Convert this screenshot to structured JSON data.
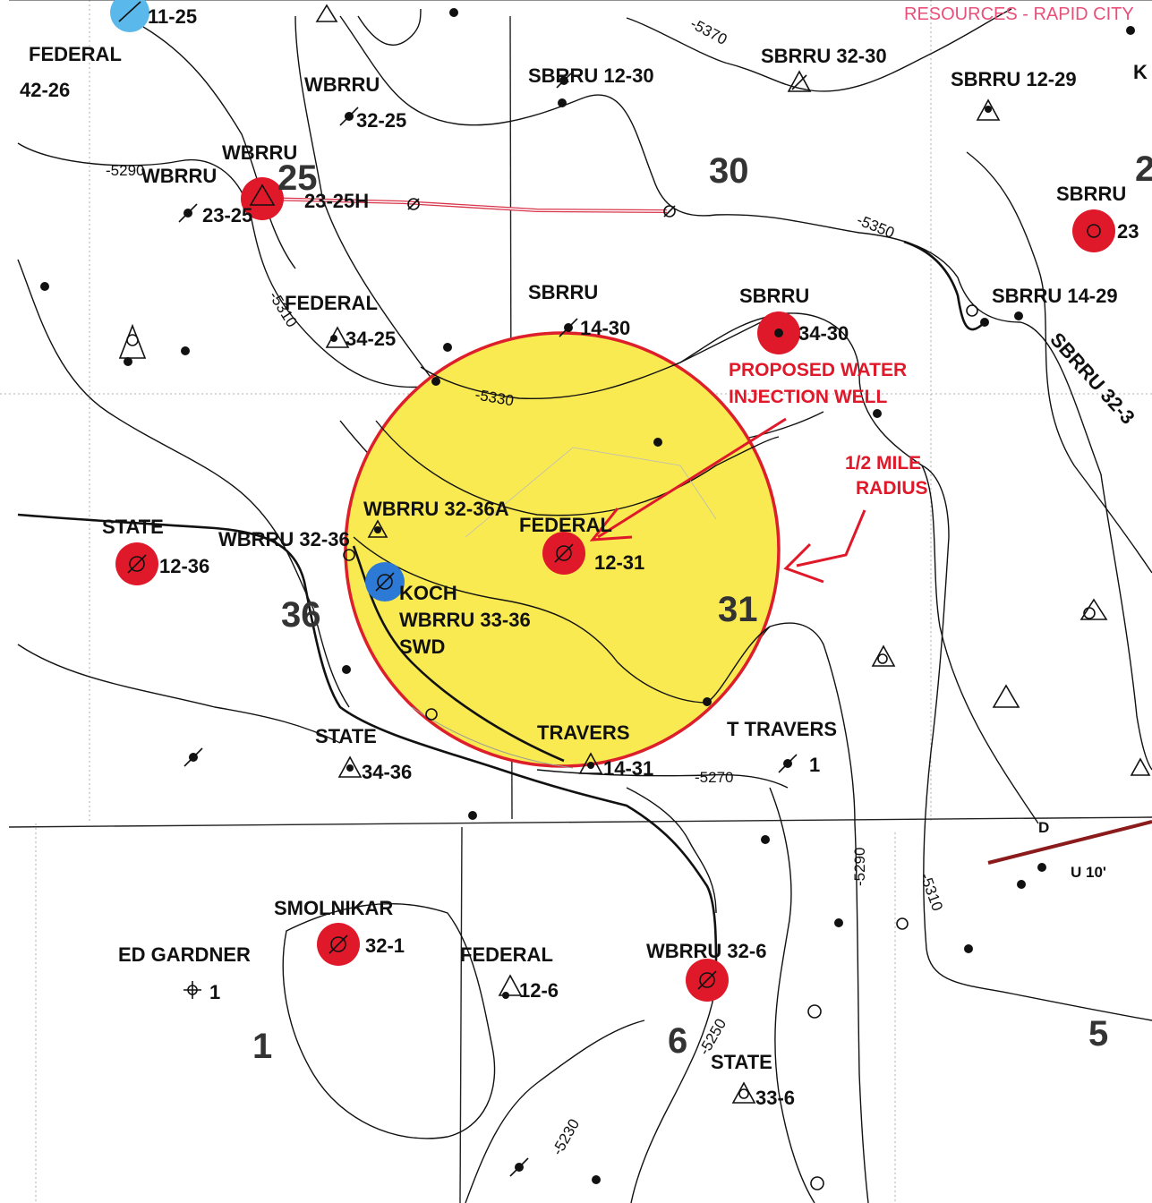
{
  "stamp": {
    "text": "RESOURCES - RAPID CITY"
  },
  "sections": [
    {
      "id": "25",
      "text": "25"
    },
    {
      "id": "30",
      "text": "30"
    },
    {
      "id": "36",
      "text": "36"
    },
    {
      "id": "31",
      "text": "31"
    },
    {
      "id": "1",
      "text": "1"
    },
    {
      "id": "6",
      "text": "6"
    },
    {
      "id": "5",
      "text": "5"
    },
    {
      "id": "2",
      "text": "2"
    }
  ],
  "well_labels": {
    "federal_4226_name": "FEDERAL",
    "federal_4226_num": "42-26",
    "wbrru_3225_name": "WBRRU",
    "wbrru_3225_num": "32-25",
    "sbrru_1230": "SBRRU 12-30",
    "sbrru_3230": "SBRRU 32-30",
    "sbrru_1229": "SBRRU 12-29",
    "k_label": "K",
    "wbrru_2325h_name": "WBRRU",
    "wbrru_2325h_num": "23-25H",
    "wbrru_2325_name": "WBRRU",
    "wbrru_2325_num": "23-25",
    "sbrru_23_name": "SBRRU",
    "sbrru_23_num": "23",
    "federal_3425_name": "FEDERAL",
    "federal_3425_num": "34-25",
    "sbrru_1430_name": "SBRRU",
    "sbrru_1430_num": "14-30",
    "sbrru_3430_name": "SBRRU",
    "sbrru_3430_num": "34-30",
    "sbrru_1429": "SBRRU 14-29",
    "sbrru_3231_diag": "SBRRU 32-3",
    "state_1236_name": "STATE",
    "state_1236_num": "12-36",
    "wbrru_3236": "WBRRU 32-36",
    "wbrru_3236a": "WBRRU 32-36A",
    "federal_1231_name": "FEDERAL",
    "federal_1231_num": "12-31",
    "koch_line1": "KOCH",
    "koch_line2": "WBRRU 33-36",
    "koch_line3": "SWD",
    "state_3436_name": "STATE",
    "state_3436_num": "34-36",
    "travers_1431_name": "TRAVERS",
    "travers_1431_num": "14-31",
    "t_travers_name": "T TRAVERS",
    "t_travers_num": "1",
    "smolnikar_name": "SMOLNIKAR",
    "smolnikar_num": "32-1",
    "ed_gardner_name": "ED GARDNER",
    "ed_gardner_num": "1",
    "federal_126_name": "FEDERAL",
    "federal_126_num": "12-6",
    "wbrru_326": "WBRRU 32-6",
    "state_336_name": "STATE",
    "state_336_num": "33-6",
    "top_cut": "11-25"
  },
  "annotations": {
    "proposed_line1": "PROPOSED WATER",
    "proposed_line2": "INJECTION WELL",
    "radius_line1": "1/2 MILE",
    "radius_line2": "RADIUS"
  },
  "contour_labels": [
    {
      "id": "c5370",
      "text": "-5370"
    },
    {
      "id": "c5290top",
      "text": "-5290"
    },
    {
      "id": "c5350",
      "text": "-5350"
    },
    {
      "id": "c5310top",
      "text": "-5310"
    },
    {
      "id": "c5330",
      "text": "-5330"
    },
    {
      "id": "c5270",
      "text": "-5270"
    },
    {
      "id": "c5290",
      "text": "-5290"
    },
    {
      "id": "c5310",
      "text": "-5310"
    },
    {
      "id": "c5250",
      "text": "-5250"
    },
    {
      "id": "c5230",
      "text": "-5230"
    }
  ],
  "fault": {
    "down": "D",
    "up": "U 10'"
  },
  "colors": {
    "radius_fill": "#f9ea52",
    "radius_stroke": "#dd1f2b",
    "well_red": "#e0192a",
    "well_blue": "#2d7ad6",
    "well_lightblue": "#5bb8ea",
    "pipeline": "#d9344a",
    "fault": "#8b1a1a",
    "annotation": "#e0192a"
  }
}
